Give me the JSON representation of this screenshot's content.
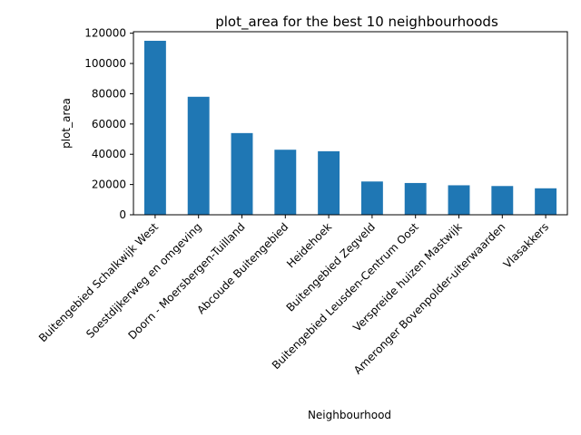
{
  "chart_data": {
    "type": "bar",
    "title": "plot_area for the best 10 neighbourhoods",
    "xlabel": "Neighbourhood",
    "ylabel": "plot_area",
    "categories": [
      "Buitengebied Schalkwijk West",
      "Soestdijkerweg en omgeving",
      "Doorn - Moersbergen-Tuilland",
      "Abcoude Buitengebied",
      "Heidehoek",
      "Buitengebied Zegveld",
      "Buitengebied Leusden-Centrum Oost",
      "Verspreide huizen Mastwijk",
      "Ameronger Bovenpolder-uiterwaarden",
      "Vlasakkers"
    ],
    "values": [
      115000,
      78000,
      54000,
      43000,
      42000,
      22000,
      21000,
      19500,
      19000,
      17500
    ],
    "ylim": [
      0,
      121000
    ],
    "yticks": [
      "0",
      "20000",
      "40000",
      "60000",
      "80000",
      "100000",
      "120000"
    ],
    "ytick_values": [
      0,
      20000,
      40000,
      60000,
      80000,
      100000,
      120000
    ],
    "grid": false,
    "legend": "none",
    "bar_color": "#1f77b4"
  }
}
